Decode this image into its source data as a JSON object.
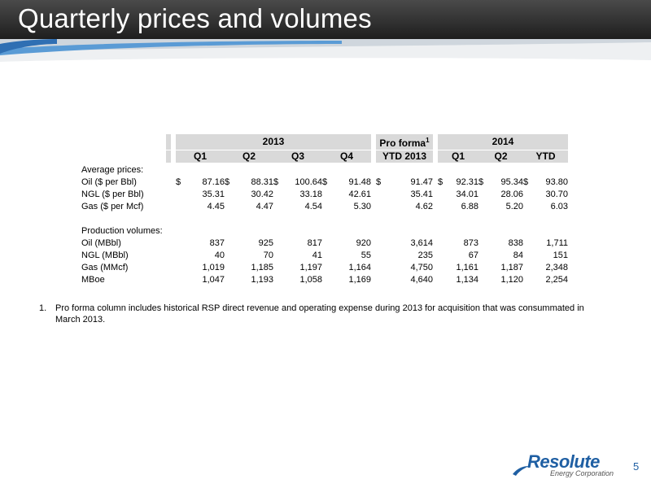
{
  "title": "Quarterly prices and volumes",
  "table": {
    "group_headers": {
      "year_2013": "2013",
      "pro_forma": "Pro forma",
      "pro_forma_sup": "1",
      "year_2014": "2014"
    },
    "columns": [
      "Q1",
      "Q2",
      "Q3",
      "Q4",
      "YTD 2013",
      "Q1",
      "Q2",
      "YTD"
    ],
    "sections": [
      {
        "label": "Average prices:",
        "rows": [
          {
            "label": "Oil ($ per Bbl)",
            "currency": "$",
            "values": [
              "87.16",
              "88.31",
              "100.64",
              "91.48",
              "91.47",
              "92.31",
              "95.34",
              "93.80"
            ]
          },
          {
            "label": "NGL ($ per Bbl)",
            "currency": "",
            "values": [
              "35.31",
              "30.42",
              "33.18",
              "42.61",
              "35.41",
              "34.01",
              "28.06",
              "30.70"
            ]
          },
          {
            "label": "Gas ($ per Mcf)",
            "currency": "",
            "values": [
              "4.45",
              "4.47",
              "4.54",
              "5.30",
              "4.62",
              "6.88",
              "5.20",
              "6.03"
            ]
          }
        ]
      },
      {
        "label": "Production volumes:",
        "rows": [
          {
            "label": "Oil (MBbl)",
            "currency": "",
            "values": [
              "837",
              "925",
              "817",
              "920",
              "3,614",
              "873",
              "838",
              "1,711"
            ]
          },
          {
            "label": "NGL (MBbl)",
            "currency": "",
            "values": [
              "40",
              "70",
              "41",
              "55",
              "235",
              "67",
              "84",
              "151"
            ]
          },
          {
            "label": "Gas (MMcf)",
            "currency": "",
            "values": [
              "1,019",
              "1,185",
              "1,197",
              "1,164",
              "4,750",
              "1,161",
              "1,187",
              "2,348"
            ]
          },
          {
            "label": "MBoe",
            "currency": "",
            "values": [
              "1,047",
              "1,193",
              "1,058",
              "1,169",
              "4,640",
              "1,134",
              "1,120",
              "2,254"
            ]
          }
        ]
      }
    ]
  },
  "footnote": {
    "number": "1.",
    "text": "Pro forma column includes historical RSP direct revenue and operating expense during 2013 for acquisition that was consummated in March 2013."
  },
  "logo": {
    "name": "Resolute",
    "tagline": "Energy Corporation"
  },
  "page_number": "5",
  "colors": {
    "title_bar": "#2b2b2b",
    "header_fill": "#d9d9d9",
    "brand_blue": "#1f5fa3"
  }
}
